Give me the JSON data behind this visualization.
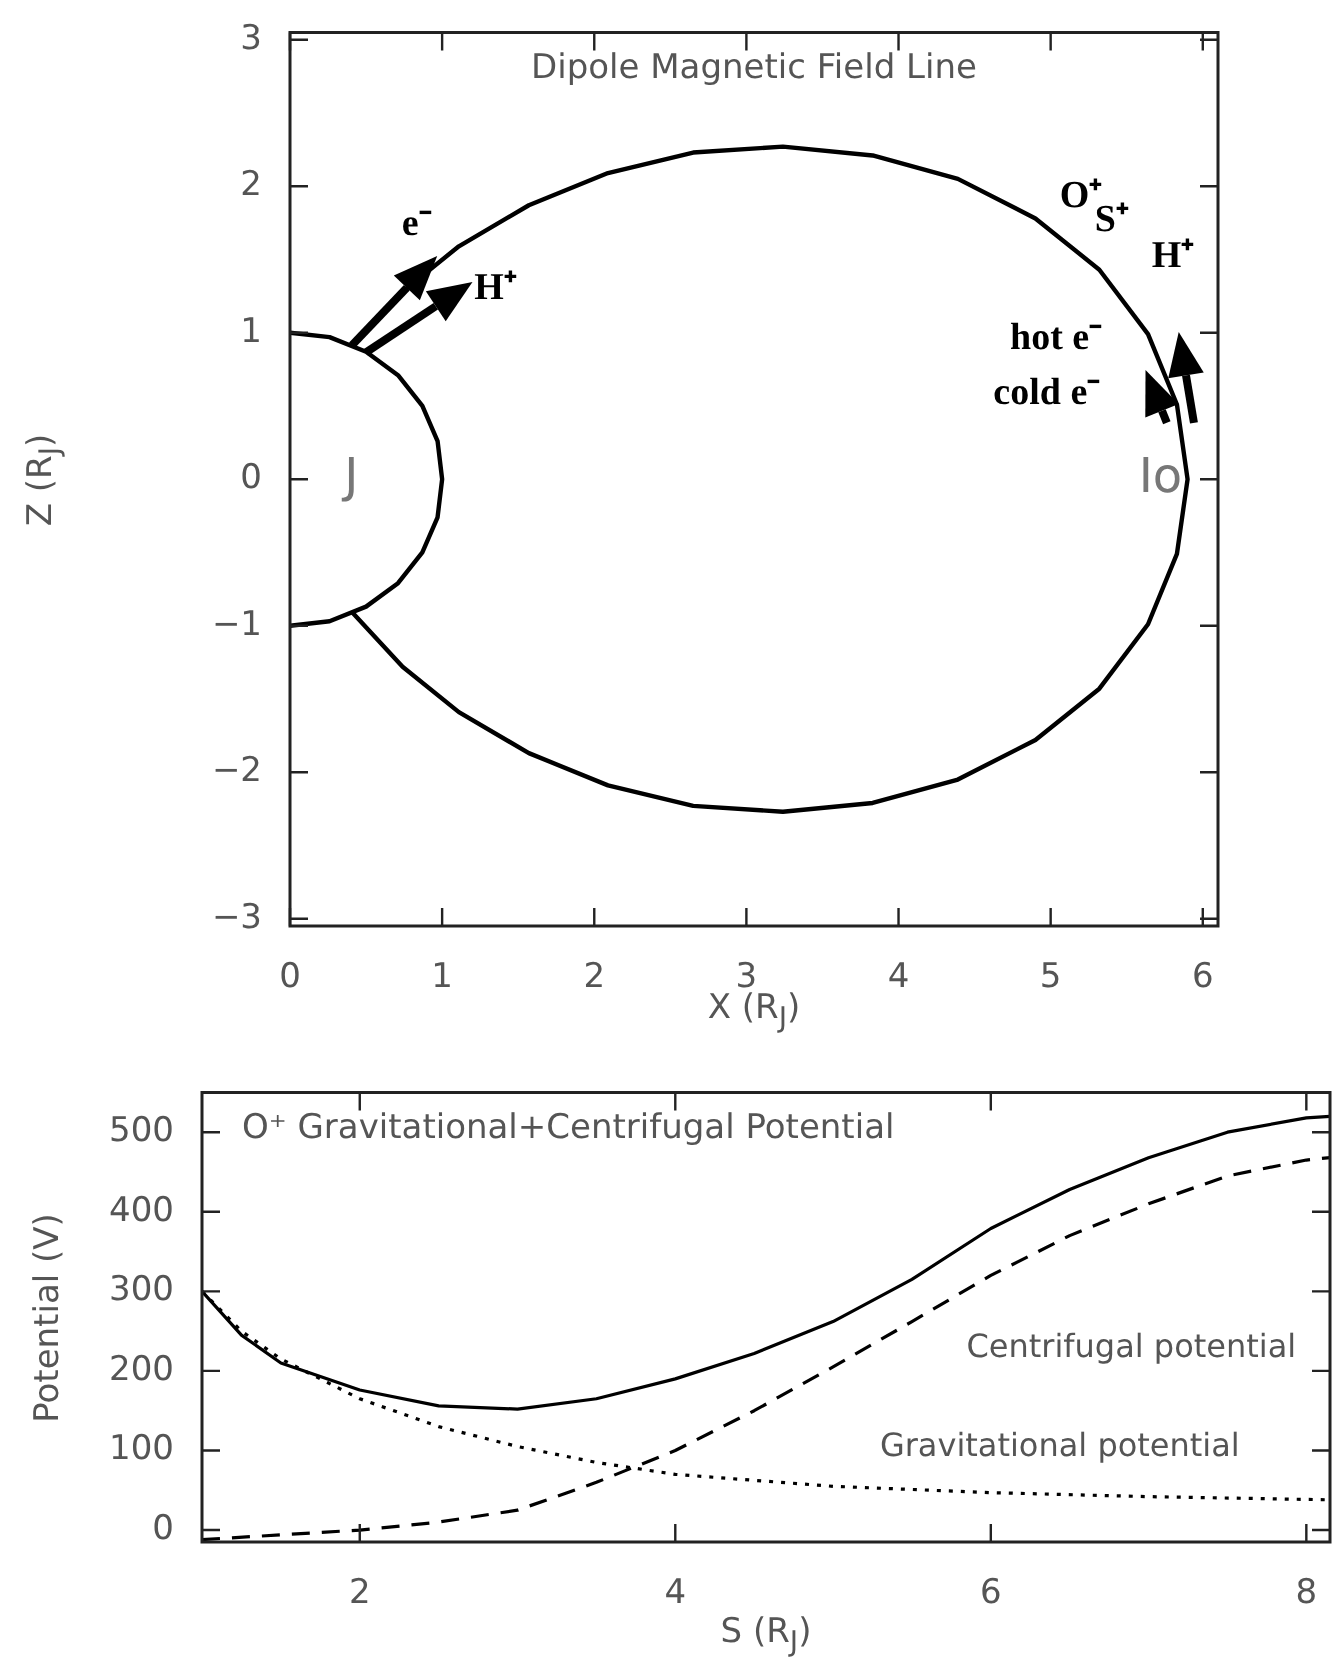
{
  "chart_data": [
    {
      "type": "line",
      "title": "Dipole Magnetic Field Line",
      "xlabel": "X (R$_{J}$)",
      "ylabel": "Z (R$_{J}$)",
      "xlim": [
        0,
        6.1
      ],
      "ylim": [
        -3.05,
        3.05
      ],
      "xticks": [
        0,
        1,
        2,
        3,
        4,
        5,
        6
      ],
      "yticks": [
        -3,
        -2,
        -1,
        0,
        1,
        2,
        3
      ],
      "grid": false,
      "legend": false,
      "marker": "none",
      "series": [
        {
          "color": "#000000",
          "line_style": "solid",
          "x": [
            0.41,
            0.74,
            1.11,
            1.57,
            2.09,
            2.65,
            3.24,
            3.83,
            4.39,
            4.9,
            5.32,
            5.64,
            5.83,
            5.9,
            5.83,
            5.64,
            5.32,
            4.9,
            4.39,
            3.83,
            3.24,
            2.65,
            2.09,
            1.57,
            1.11,
            0.74,
            0.41
          ],
          "values": [
            0.91,
            1.28,
            1.59,
            1.87,
            2.09,
            2.23,
            2.27,
            2.21,
            2.05,
            1.78,
            1.43,
            0.99,
            0.51,
            0,
            -0.51,
            -0.99,
            -1.43,
            -1.78,
            -2.05,
            -2.21,
            -2.27,
            -2.23,
            -2.09,
            -1.87,
            -1.59,
            -1.28,
            -0.91
          ]
        },
        {
          "color": "#000000",
          "line_style": "solid",
          "x": [
            0,
            0.26,
            0.5,
            0.71,
            0.87,
            0.97,
            1,
            0.97,
            0.87,
            0.71,
            0.5,
            0.26,
            0
          ],
          "values": [
            1,
            0.97,
            0.87,
            0.71,
            0.5,
            0.26,
            0,
            -0.26,
            -0.5,
            -0.71,
            -0.87,
            -0.97,
            -1
          ]
        }
      ],
      "annotations": [
        {
          "text": "e⁻",
          "x": 0.41,
          "y": 0.91
        },
        {
          "text": "H⁺",
          "x": 0.5,
          "y": 0.87
        },
        "O⁺",
        "S⁺",
        "H⁺",
        "hot e⁻",
        "cold e⁻",
        "J",
        "Io"
      ]
    },
    {
      "type": "line",
      "title": "O⁺ Gravitational+Centrifugal Potential",
      "xlabel": "S (R$_{J}$)",
      "ylabel": "Potential (V)",
      "xlim": [
        1,
        8.15
      ],
      "ylim": [
        -15,
        550
      ],
      "xticks": [
        2,
        4,
        6,
        8
      ],
      "yticks": [
        0,
        100,
        200,
        300,
        400,
        500
      ],
      "grid": false,
      "legend": false,
      "marker": "none",
      "series": [
        {
          "color": "#000000",
          "line_style": "solid",
          "x": [
            1,
            1.25,
            1.5,
            2,
            2.5,
            3,
            3.5,
            4,
            4.5,
            5,
            5.5,
            6,
            6.5,
            7,
            7.5,
            8,
            8.15
          ],
          "values": [
            300,
            245,
            210,
            176,
            156,
            152,
            165,
            190,
            222,
            262,
            315,
            379,
            428,
            468,
            500,
            518,
            520
          ]
        },
        {
          "name": "Centrifugal potential",
          "color": "#000000",
          "line_style": "dashed",
          "x": [
            1,
            1.5,
            2,
            2.5,
            3,
            3.5,
            4,
            4.5,
            5,
            5.5,
            6,
            6.5,
            7,
            7.5,
            8,
            8.15
          ],
          "values": [
            -12,
            -6,
            0,
            10,
            25,
            60,
            100,
            150,
            205,
            262,
            320,
            370,
            410,
            445,
            465,
            468
          ]
        },
        {
          "name": "Gravitational potential",
          "color": "#000000",
          "line_style": "dotted",
          "x": [
            1,
            1.25,
            1.5,
            2,
            2.5,
            3,
            3.5,
            4,
            5,
            6,
            7,
            8.15
          ],
          "values": [
            300,
            250,
            215,
            165,
            130,
            105,
            85,
            70,
            55,
            47,
            42,
            38
          ]
        }
      ]
    }
  ]
}
